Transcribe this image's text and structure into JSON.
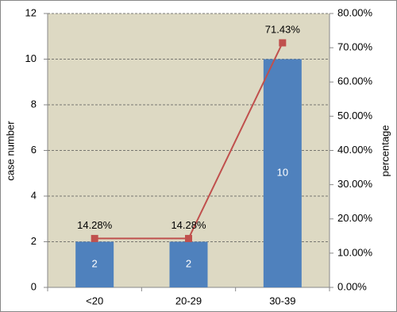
{
  "chart_data": {
    "type": "bar",
    "categories": [
      "<20",
      "20-29",
      "30-39"
    ],
    "y_label": "case number",
    "y2_label": "percentage",
    "ylim": [
      0,
      12
    ],
    "yticks": [
      0,
      2,
      4,
      6,
      8,
      10,
      12
    ],
    "y2lim": [
      0,
      80
    ],
    "y2ticks": [
      {
        "value": 0,
        "label": "0.00%"
      },
      {
        "value": 10,
        "label": "10.00%"
      },
      {
        "value": 20,
        "label": "20.00%"
      },
      {
        "value": 30,
        "label": "30.00%"
      },
      {
        "value": 40,
        "label": "40.00%"
      },
      {
        "value": 50,
        "label": "50.00%"
      },
      {
        "value": 60,
        "label": "60.00%"
      },
      {
        "value": 70,
        "label": "70.00%"
      },
      {
        "value": 80,
        "label": "80.00%"
      }
    ],
    "grid": true,
    "series": [
      {
        "type": "bar",
        "color": "#4f81bd",
        "values": [
          2,
          2,
          10
        ]
      },
      {
        "type": "line",
        "axis": "y2",
        "color": "#c0504d",
        "values": [
          14.28,
          14.28,
          71.43
        ],
        "value_labels": [
          "14.28%",
          "14.28%",
          "71.43%"
        ]
      }
    ]
  }
}
